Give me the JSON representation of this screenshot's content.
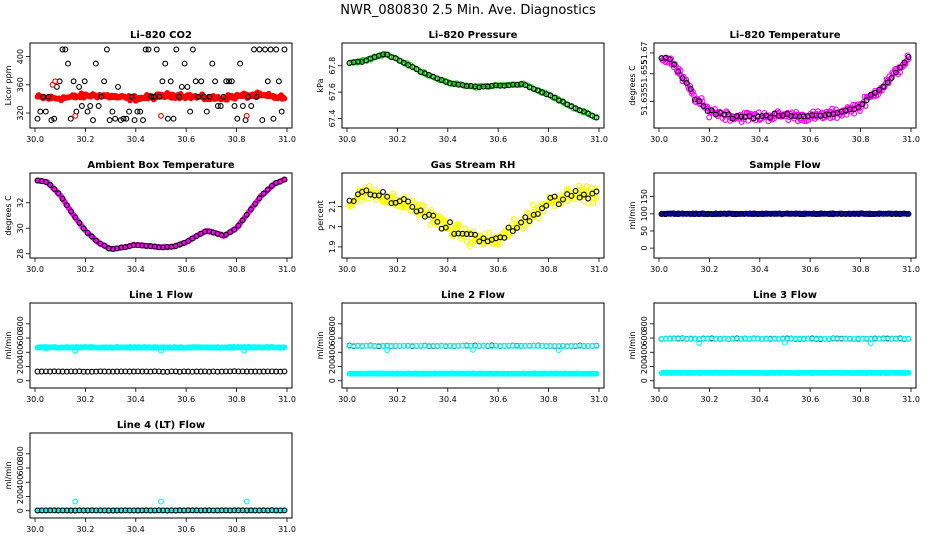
{
  "page_title": "NWR_080830  2.5 Min. Ave. Diagnostics",
  "chart_data": [
    {
      "type": "scatter",
      "title": "Li–820 CO2",
      "ylabel": "Licor ppm",
      "xlim": [
        30.0,
        31.0
      ],
      "ylim": [
        303,
        415
      ],
      "yticks": [
        320,
        360,
        400
      ],
      "xticks": [
        30.0,
        30.2,
        30.4,
        30.6,
        30.8,
        31.0
      ],
      "series": [
        {
          "name": "main",
          "color": "#ff0000",
          "filled": true,
          "gen": "band",
          "base": 343,
          "amp": 2,
          "noise": 4,
          "n": 220
        },
        {
          "name": "ref",
          "color": "#000000",
          "gen": "levels",
          "levels": [
            410,
            390,
            365,
            357,
            343,
            330,
            322,
            312,
            310
          ],
          "n": 90
        },
        {
          "name": "flag",
          "color": "#ff0000",
          "gen": "list",
          "pts": [
            [
              30.07,
              360
            ],
            [
              30.08,
              365
            ],
            [
              30.16,
              316
            ],
            [
              30.5,
              316
            ],
            [
              30.84,
              316
            ]
          ]
        }
      ]
    },
    {
      "type": "scatter",
      "title": "Li–820 Pressure",
      "ylabel": "kPa",
      "xlim": [
        30.0,
        31.0
      ],
      "ylim": [
        67.35,
        67.95
      ],
      "yticks": [
        67.4,
        67.6,
        67.8
      ],
      "xticks": [
        30.0,
        30.2,
        30.4,
        30.6,
        30.8,
        31.0
      ],
      "series": [
        {
          "name": "main",
          "color": "#00cc00",
          "gen": "curve",
          "curve": [
            [
              30.0,
              67.82
            ],
            [
              30.05,
              67.83
            ],
            [
              30.1,
              67.86
            ],
            [
              30.15,
              67.89
            ],
            [
              30.2,
              67.85
            ],
            [
              30.3,
              67.75
            ],
            [
              30.4,
              67.67
            ],
            [
              30.5,
              67.64
            ],
            [
              30.6,
              67.65
            ],
            [
              30.7,
              67.66
            ],
            [
              30.8,
              67.58
            ],
            [
              30.9,
              67.48
            ],
            [
              31.0,
              67.4
            ]
          ],
          "noise": 0.008,
          "n": 130
        },
        {
          "name": "ref",
          "color": "#000000",
          "gen": "curve",
          "curve": [
            [
              30.0,
              67.82
            ],
            [
              30.05,
              67.83
            ],
            [
              30.1,
              67.86
            ],
            [
              30.15,
              67.89
            ],
            [
              30.2,
              67.85
            ],
            [
              30.3,
              67.75
            ],
            [
              30.4,
              67.67
            ],
            [
              30.5,
              67.64
            ],
            [
              30.6,
              67.65
            ],
            [
              30.7,
              67.66
            ],
            [
              30.8,
              67.58
            ],
            [
              30.9,
              67.48
            ],
            [
              31.0,
              67.4
            ]
          ],
          "noise": 0.006,
          "n": 60
        }
      ]
    },
    {
      "type": "scatter",
      "title": "Li–820 Temperature",
      "ylabel": "degrees C",
      "xlim": [
        30.0,
        31.0
      ],
      "ylim": [
        51.618,
        51.675
      ],
      "yticks": [
        51.635,
        51.655,
        51.67
      ],
      "xticks": [
        30.0,
        30.2,
        30.4,
        30.6,
        30.8,
        31.0
      ],
      "series": [
        {
          "name": "main",
          "color": "#ff00ff",
          "gen": "curve",
          "curve": [
            [
              30.0,
              51.667
            ],
            [
              30.05,
              51.664
            ],
            [
              30.1,
              51.65
            ],
            [
              30.15,
              51.636
            ],
            [
              30.2,
              51.628
            ],
            [
              30.3,
              51.624
            ],
            [
              30.4,
              51.624
            ],
            [
              30.5,
              51.625
            ],
            [
              30.6,
              51.624
            ],
            [
              30.7,
              51.626
            ],
            [
              30.8,
              51.632
            ],
            [
              30.9,
              51.648
            ],
            [
              31.0,
              51.668
            ]
          ],
          "noise": 0.004,
          "n": 260
        },
        {
          "name": "ref",
          "color": "#000000",
          "gen": "curve",
          "curve": [
            [
              30.0,
              51.667
            ],
            [
              30.05,
              51.664
            ],
            [
              30.1,
              51.65
            ],
            [
              30.15,
              51.636
            ],
            [
              30.2,
              51.628
            ],
            [
              30.3,
              51.624
            ],
            [
              30.4,
              51.624
            ],
            [
              30.5,
              51.625
            ],
            [
              30.6,
              51.624
            ],
            [
              30.7,
              51.626
            ],
            [
              30.8,
              51.632
            ],
            [
              30.9,
              51.648
            ],
            [
              31.0,
              51.668
            ]
          ],
          "noise": 0.0015,
          "n": 60
        }
      ]
    },
    {
      "type": "scatter",
      "title": "Ambient Box Temperature",
      "ylabel": "degrees C",
      "xlim": [
        30.0,
        31.0
      ],
      "ylim": [
        27.9,
        34.1
      ],
      "yticks": [
        28,
        30,
        32
      ],
      "xticks": [
        30.0,
        30.2,
        30.4,
        30.6,
        30.8,
        31.0
      ],
      "series": [
        {
          "name": "main",
          "color": "#ff00ff",
          "filled": true,
          "gen": "curve",
          "curve": [
            [
              30.0,
              33.8
            ],
            [
              30.05,
              33.6
            ],
            [
              30.1,
              32.6
            ],
            [
              30.15,
              31.1
            ],
            [
              30.2,
              29.8
            ],
            [
              30.25,
              28.9
            ],
            [
              30.3,
              28.35
            ],
            [
              30.35,
              28.5
            ],
            [
              30.4,
              28.7
            ],
            [
              30.5,
              28.5
            ],
            [
              30.55,
              28.55
            ],
            [
              30.6,
              28.9
            ],
            [
              30.65,
              29.5
            ],
            [
              30.68,
              29.8
            ],
            [
              30.72,
              29.6
            ],
            [
              30.75,
              29.4
            ],
            [
              30.8,
              30.0
            ],
            [
              30.85,
              31.3
            ],
            [
              30.9,
              32.6
            ],
            [
              30.95,
              33.5
            ],
            [
              31.0,
              33.9
            ]
          ],
          "noise": 0.04,
          "n": 200
        },
        {
          "name": "ref",
          "color": "#000000",
          "gen": "curve",
          "curve": [
            [
              30.0,
              33.8
            ],
            [
              30.05,
              33.6
            ],
            [
              30.1,
              32.6
            ],
            [
              30.15,
              31.1
            ],
            [
              30.2,
              29.8
            ],
            [
              30.25,
              28.9
            ],
            [
              30.3,
              28.35
            ],
            [
              30.35,
              28.5
            ],
            [
              30.4,
              28.7
            ],
            [
              30.5,
              28.5
            ],
            [
              30.55,
              28.55
            ],
            [
              30.6,
              28.9
            ],
            [
              30.65,
              29.5
            ],
            [
              30.68,
              29.8
            ],
            [
              30.72,
              29.6
            ],
            [
              30.75,
              29.4
            ],
            [
              30.8,
              30.0
            ],
            [
              30.85,
              31.3
            ],
            [
              30.9,
              32.6
            ],
            [
              30.95,
              33.5
            ],
            [
              31.0,
              33.9
            ]
          ],
          "noise": 0.02,
          "n": 60
        }
      ]
    },
    {
      "type": "scatter",
      "title": "Gas Stream RH",
      "ylabel": "percent",
      "xlim": [
        30.0,
        31.0
      ],
      "ylim": [
        1.86,
        2.25
      ],
      "yticks": [
        1.9,
        2.0,
        2.1
      ],
      "xticks": [
        30.0,
        30.2,
        30.4,
        30.6,
        30.8,
        31.0
      ],
      "series": [
        {
          "name": "main",
          "color": "#ffff00",
          "gen": "curve",
          "curve": [
            [
              30.0,
              2.1
            ],
            [
              30.05,
              2.16
            ],
            [
              30.1,
              2.17
            ],
            [
              30.2,
              2.12
            ],
            [
              30.3,
              2.08
            ],
            [
              30.4,
              2.0
            ],
            [
              30.5,
              1.94
            ],
            [
              30.6,
              1.93
            ],
            [
              30.7,
              2.03
            ],
            [
              30.8,
              2.12
            ],
            [
              30.9,
              2.17
            ],
            [
              31.0,
              2.15
            ]
          ],
          "noise": 0.04,
          "n": 300
        },
        {
          "name": "ref",
          "color": "#000000",
          "gen": "curve",
          "curve": [
            [
              30.0,
              2.1
            ],
            [
              30.05,
              2.16
            ],
            [
              30.1,
              2.17
            ],
            [
              30.2,
              2.12
            ],
            [
              30.3,
              2.08
            ],
            [
              30.4,
              2.0
            ],
            [
              30.5,
              1.94
            ],
            [
              30.6,
              1.93
            ],
            [
              30.7,
              2.03
            ],
            [
              30.8,
              2.12
            ],
            [
              30.9,
              2.17
            ],
            [
              31.0,
              2.15
            ]
          ],
          "noise": 0.03,
          "n": 60
        }
      ]
    },
    {
      "type": "scatter",
      "title": "Sample Flow",
      "ylabel": "ml/min",
      "xlim": [
        30.0,
        31.0
      ],
      "ylim": [
        -20,
        210
      ],
      "yticks": [
        0,
        50,
        100,
        150
      ],
      "xticks": [
        30.0,
        30.2,
        30.4,
        30.6,
        30.8,
        31.0
      ],
      "series": [
        {
          "name": "main",
          "color": "#0000cc",
          "filled": true,
          "gen": "band",
          "base": 100,
          "amp": 0,
          "noise": 1.5,
          "n": 260
        },
        {
          "name": "ref",
          "color": "#000000",
          "gen": "band",
          "base": 100,
          "amp": 0,
          "noise": 1.5,
          "n": 60
        }
      ]
    },
    {
      "type": "scatter",
      "title": "Line 1 Flow",
      "ylabel": "ml/min",
      "xlim": [
        30.0,
        31.0
      ],
      "ylim": [
        -60,
        1050
      ],
      "yticks": [
        0,
        200,
        400,
        600,
        800
      ],
      "xticks": [
        30.0,
        30.2,
        30.4,
        30.6,
        30.8,
        31.0
      ],
      "series": [
        {
          "name": "main",
          "color": "#00ffff",
          "filled": true,
          "gen": "band",
          "base": 468,
          "amp": 0,
          "noise": 8,
          "n": 260
        },
        {
          "name": "ref",
          "color": "#000000",
          "gen": "band",
          "base": 130,
          "amp": 0,
          "noise": 4,
          "n": 60
        },
        {
          "name": "flag",
          "color": "#00ffff",
          "gen": "list",
          "pts": [
            [
              30.16,
              420
            ],
            [
              30.5,
              425
            ],
            [
              30.83,
              425
            ]
          ]
        }
      ]
    },
    {
      "type": "scatter",
      "title": "Line 2 Flow",
      "ylabel": "ml/min",
      "xlim": [
        30.0,
        31.0
      ],
      "ylim": [
        -60,
        1050
      ],
      "yticks": [
        0,
        200,
        400,
        600,
        800
      ],
      "xticks": [
        30.0,
        30.2,
        30.4,
        30.6,
        30.8,
        31.0
      ],
      "series": [
        {
          "name": "band",
          "color": "#00ffff",
          "filled": true,
          "gen": "band",
          "base": 100,
          "amp": 0,
          "noise": 3,
          "n": 260
        },
        {
          "name": "ref",
          "color": "#000000",
          "gen": "band",
          "base": 490,
          "amp": 0,
          "noise": 5,
          "n": 60
        },
        {
          "name": "main",
          "color": "#00ffff",
          "gen": "band",
          "base": 490,
          "amp": 0,
          "noise": 4,
          "n": 60
        },
        {
          "name": "flag",
          "color": "#00ffff",
          "gen": "list",
          "pts": [
            [
              30.16,
              430
            ],
            [
              30.5,
              435
            ],
            [
              30.84,
              430
            ]
          ]
        }
      ]
    },
    {
      "type": "scatter",
      "title": "Line 3 Flow",
      "ylabel": "ml/min",
      "xlim": [
        30.0,
        31.0
      ],
      "ylim": [
        -60,
        1050
      ],
      "yticks": [
        0,
        200,
        400,
        600,
        800
      ],
      "xticks": [
        30.0,
        30.2,
        30.4,
        30.6,
        30.8,
        31.0
      ],
      "series": [
        {
          "name": "band",
          "color": "#00ffff",
          "filled": true,
          "gen": "band",
          "base": 110,
          "amp": 0,
          "noise": 3,
          "n": 260
        },
        {
          "name": "ref",
          "color": "#000000",
          "gen": "band",
          "base": 590,
          "amp": 0,
          "noise": 6,
          "n": 60
        },
        {
          "name": "main",
          "color": "#00ffff",
          "gen": "band",
          "base": 590,
          "amp": 0,
          "noise": 5,
          "n": 60
        },
        {
          "name": "flag",
          "color": "#00ffff",
          "gen": "list",
          "pts": [
            [
              30.16,
              530
            ],
            [
              30.5,
              535
            ],
            [
              30.84,
              530
            ]
          ]
        }
      ]
    },
    {
      "type": "scatter",
      "title": "Line 4 (LT) Flow",
      "ylabel": "ml/min",
      "xlim": [
        30.0,
        31.0
      ],
      "ylim": [
        -60,
        1050
      ],
      "yticks": [
        0,
        200,
        400,
        600,
        800
      ],
      "xticks": [
        30.0,
        30.2,
        30.4,
        30.6,
        30.8,
        31.0
      ],
      "series": [
        {
          "name": "main",
          "color": "#00ffff",
          "filled": true,
          "gen": "band",
          "base": 5,
          "amp": 0,
          "noise": 2,
          "n": 260
        },
        {
          "name": "ref",
          "color": "#000000",
          "gen": "band",
          "base": 5,
          "amp": 0,
          "noise": 2,
          "n": 60
        },
        {
          "name": "flag",
          "color": "#00ffff",
          "gen": "list",
          "pts": [
            [
              30.16,
              130
            ],
            [
              30.5,
              130
            ],
            [
              30.84,
              130
            ]
          ]
        }
      ]
    }
  ]
}
